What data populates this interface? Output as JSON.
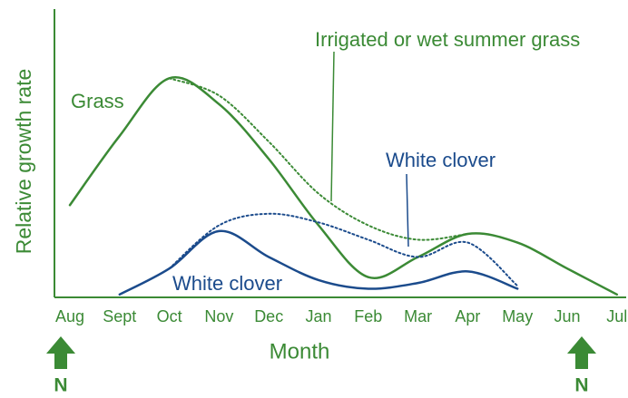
{
  "chart_data": {
    "type": "line",
    "x_label": "Month",
    "y_label": "Relative growth rate",
    "categories": [
      "Aug",
      "Sept",
      "Oct",
      "Nov",
      "Dec",
      "Jan",
      "Feb",
      "Mar",
      "Apr",
      "May",
      "Jun",
      "Jul"
    ],
    "ylim": [
      0,
      100
    ],
    "axis_color": "#3b8a35",
    "series": [
      {
        "name": "Grass",
        "color": "#3b8a35",
        "style": "solid",
        "values": [
          32,
          56,
          76,
          67,
          48,
          25,
          7,
          14,
          22,
          19,
          10,
          1
        ]
      },
      {
        "name": "Irrigated or wet summer grass",
        "color": "#3b8a35",
        "style": "dotted",
        "values": [
          null,
          null,
          76,
          70,
          54,
          36,
          25,
          20,
          22,
          null,
          null,
          null
        ]
      },
      {
        "name": "White clover",
        "color": "#1b4b8c",
        "style": "solid",
        "values": [
          null,
          1,
          10,
          23,
          14,
          6,
          3,
          5,
          9,
          3,
          null,
          null
        ]
      },
      {
        "name": "White clover",
        "color": "#1b4b8c",
        "style": "dotted",
        "values": [
          null,
          null,
          10,
          25,
          29,
          26,
          20,
          14,
          19,
          4,
          null,
          null
        ]
      }
    ],
    "markers": [
      "N",
      "N"
    ]
  }
}
